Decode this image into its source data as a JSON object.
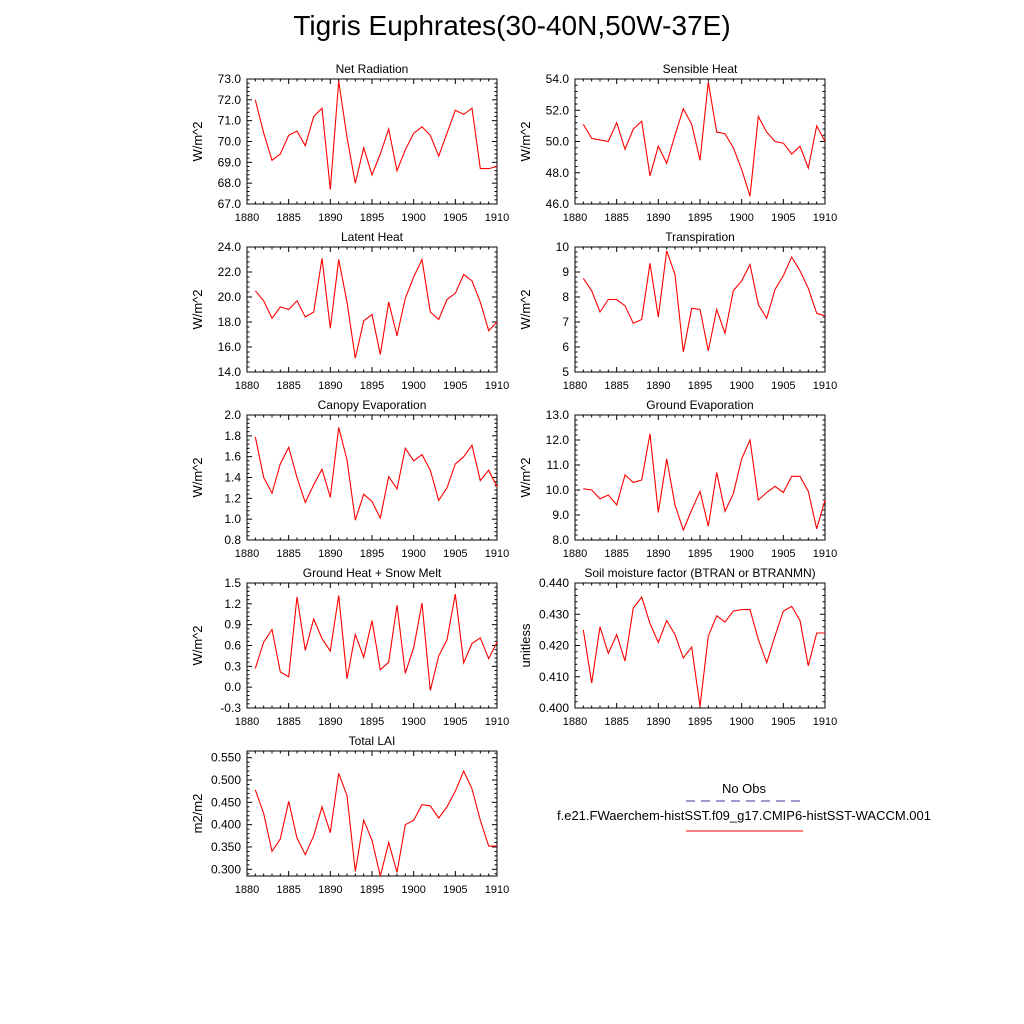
{
  "page_title": "Tigris Euphrates(30-40N,50W-37E)",
  "legend": {
    "obs_label": "No Obs",
    "obs_color": "#3a3aa0",
    "model_label": "f.e21.FWaerchem-histSST.f09_g17.CMIP6-histSST-WACCM.001",
    "model_color": "#ff0000"
  },
  "chart_data": [
    {
      "type": "line",
      "title": "Net Radiation",
      "xlabel": "",
      "ylabel": "W/m^2",
      "xlim": [
        1880,
        1910
      ],
      "ylim": [
        67.0,
        73.0
      ],
      "xticks": [
        "1880",
        "1885",
        "1890",
        "1895",
        "1900",
        "1905",
        "1910"
      ],
      "yticks": [
        "67.0",
        "68.0",
        "69.0",
        "70.0",
        "71.0",
        "72.0",
        "73.0"
      ],
      "x": [
        1881,
        1882,
        1883,
        1884,
        1885,
        1886,
        1887,
        1888,
        1889,
        1890,
        1891,
        1892,
        1893,
        1894,
        1895,
        1896,
        1897,
        1898,
        1899,
        1900,
        1901,
        1902,
        1903,
        1904,
        1905,
        1906,
        1907,
        1908,
        1909,
        1910
      ],
      "series": [
        {
          "values": [
            72.0,
            70.4,
            69.1,
            69.4,
            70.3,
            70.5,
            69.8,
            71.2,
            71.6,
            67.7,
            72.9,
            70.2,
            68.0,
            69.7,
            68.4,
            69.4,
            70.6,
            68.6,
            69.6,
            70.4,
            70.7,
            70.3,
            69.3,
            70.4,
            71.5,
            71.3,
            71.6,
            68.7,
            68.7,
            68.8
          ]
        }
      ]
    },
    {
      "type": "line",
      "title": "Sensible Heat",
      "xlabel": "",
      "ylabel": "W/m^2",
      "xlim": [
        1880,
        1910
      ],
      "ylim": [
        46.0,
        54.0
      ],
      "xticks": [
        "1880",
        "1885",
        "1890",
        "1895",
        "1900",
        "1905",
        "1910"
      ],
      "yticks": [
        "46.0",
        "48.0",
        "50.0",
        "52.0",
        "54.0"
      ],
      "x": [
        1881,
        1882,
        1883,
        1884,
        1885,
        1886,
        1887,
        1888,
        1889,
        1890,
        1891,
        1892,
        1893,
        1894,
        1895,
        1896,
        1897,
        1898,
        1899,
        1900,
        1901,
        1902,
        1903,
        1904,
        1905,
        1906,
        1907,
        1908,
        1909,
        1910
      ],
      "series": [
        {
          "values": [
            51.1,
            50.2,
            50.1,
            50.0,
            51.2,
            49.5,
            50.8,
            51.3,
            47.8,
            49.7,
            48.6,
            50.4,
            52.1,
            51.1,
            48.8,
            53.8,
            50.6,
            50.5,
            49.6,
            48.2,
            46.5,
            51.6,
            50.6,
            50.0,
            49.9,
            49.2,
            49.7,
            48.3,
            51.0,
            50.0
          ]
        }
      ]
    },
    {
      "type": "line",
      "title": "Latent Heat",
      "xlabel": "",
      "ylabel": "W/m^2",
      "xlim": [
        1880,
        1910
      ],
      "ylim": [
        14.0,
        24.0
      ],
      "xticks": [
        "1880",
        "1885",
        "1890",
        "1895",
        "1900",
        "1905",
        "1910"
      ],
      "yticks": [
        "14.0",
        "16.0",
        "18.0",
        "20.0",
        "22.0",
        "24.0"
      ],
      "x": [
        1881,
        1882,
        1883,
        1884,
        1885,
        1886,
        1887,
        1888,
        1889,
        1890,
        1891,
        1892,
        1893,
        1894,
        1895,
        1896,
        1897,
        1898,
        1899,
        1900,
        1901,
        1902,
        1903,
        1904,
        1905,
        1906,
        1907,
        1908,
        1909,
        1910
      ],
      "series": [
        {
          "values": [
            20.5,
            19.7,
            18.3,
            19.2,
            19.0,
            19.7,
            18.4,
            18.8,
            23.1,
            17.5,
            23.0,
            19.6,
            15.1,
            18.1,
            18.6,
            15.4,
            19.6,
            16.9,
            19.9,
            21.6,
            23.0,
            18.8,
            18.2,
            19.8,
            20.3,
            21.8,
            21.3,
            19.6,
            17.3,
            18.0
          ]
        }
      ]
    },
    {
      "type": "line",
      "title": "Transpiration",
      "xlabel": "",
      "ylabel": "W/m^2",
      "xlim": [
        1880,
        1910
      ],
      "ylim": [
        5,
        10
      ],
      "xticks": [
        "1880",
        "1885",
        "1890",
        "1895",
        "1900",
        "1905",
        "1910"
      ],
      "yticks": [
        "5",
        "6",
        "7",
        "8",
        "9",
        "10"
      ],
      "x": [
        1881,
        1882,
        1883,
        1884,
        1885,
        1886,
        1887,
        1888,
        1889,
        1890,
        1891,
        1892,
        1893,
        1894,
        1895,
        1896,
        1897,
        1898,
        1899,
        1900,
        1901,
        1902,
        1903,
        1904,
        1905,
        1906,
        1907,
        1908,
        1909,
        1910
      ],
      "series": [
        {
          "values": [
            8.75,
            8.25,
            7.4,
            7.9,
            7.9,
            7.65,
            6.95,
            7.1,
            9.35,
            7.2,
            9.85,
            8.9,
            5.8,
            7.55,
            7.5,
            5.85,
            7.5,
            6.55,
            8.25,
            8.65,
            9.3,
            7.7,
            7.15,
            8.3,
            8.85,
            9.6,
            9.05,
            8.35,
            7.35,
            7.25
          ]
        }
      ]
    },
    {
      "type": "line",
      "title": "Canopy Evaporation",
      "xlabel": "",
      "ylabel": "W/m^2",
      "xlim": [
        1880,
        1910
      ],
      "ylim": [
        0.8,
        2.0
      ],
      "xticks": [
        "1880",
        "1885",
        "1890",
        "1895",
        "1900",
        "1905",
        "1910"
      ],
      "yticks": [
        "0.8",
        "1.0",
        "1.2",
        "1.4",
        "1.6",
        "1.8",
        "2.0"
      ],
      "x": [
        1881,
        1882,
        1883,
        1884,
        1885,
        1886,
        1887,
        1888,
        1889,
        1890,
        1891,
        1892,
        1893,
        1894,
        1895,
        1896,
        1897,
        1898,
        1899,
        1900,
        1901,
        1902,
        1903,
        1904,
        1905,
        1906,
        1907,
        1908,
        1909,
        1910
      ],
      "series": [
        {
          "values": [
            1.79,
            1.4,
            1.25,
            1.53,
            1.69,
            1.4,
            1.16,
            1.33,
            1.48,
            1.21,
            1.88,
            1.57,
            0.99,
            1.24,
            1.17,
            1.01,
            1.41,
            1.29,
            1.68,
            1.56,
            1.62,
            1.47,
            1.18,
            1.3,
            1.53,
            1.6,
            1.71,
            1.37,
            1.47,
            1.31
          ]
        }
      ]
    },
    {
      "type": "line",
      "title": "Ground Evaporation",
      "xlabel": "",
      "ylabel": "W/m^2",
      "xlim": [
        1880,
        1910
      ],
      "ylim": [
        8.0,
        13.0
      ],
      "xticks": [
        "1880",
        "1885",
        "1890",
        "1895",
        "1900",
        "1905",
        "1910"
      ],
      "yticks": [
        "8.0",
        "9.0",
        "10.0",
        "11.0",
        "12.0",
        "13.0"
      ],
      "x": [
        1881,
        1882,
        1883,
        1884,
        1885,
        1886,
        1887,
        1888,
        1889,
        1890,
        1891,
        1892,
        1893,
        1894,
        1895,
        1896,
        1897,
        1898,
        1899,
        1900,
        1901,
        1902,
        1903,
        1904,
        1905,
        1906,
        1907,
        1908,
        1909,
        1910
      ],
      "series": [
        {
          "values": [
            10.05,
            10.0,
            9.65,
            9.8,
            9.4,
            10.6,
            10.3,
            10.4,
            12.25,
            9.1,
            11.25,
            9.4,
            8.4,
            9.2,
            9.95,
            8.55,
            10.7,
            9.15,
            9.85,
            11.25,
            12.0,
            9.6,
            9.9,
            10.15,
            9.9,
            10.55,
            10.55,
            9.95,
            8.45,
            9.6
          ]
        }
      ]
    },
    {
      "type": "line",
      "title": "Ground Heat + Snow Melt",
      "xlabel": "",
      "ylabel": "W/m^2",
      "xlim": [
        1880,
        1910
      ],
      "ylim": [
        -0.3,
        1.5
      ],
      "xticks": [
        "1880",
        "1885",
        "1890",
        "1895",
        "1900",
        "1905",
        "1910"
      ],
      "yticks": [
        "-0.3",
        "0.0",
        "0.3",
        "0.6",
        "0.9",
        "1.2",
        "1.5"
      ],
      "x": [
        1881,
        1882,
        1883,
        1884,
        1885,
        1886,
        1887,
        1888,
        1889,
        1890,
        1891,
        1892,
        1893,
        1894,
        1895,
        1896,
        1897,
        1898,
        1899,
        1900,
        1901,
        1902,
        1903,
        1904,
        1905,
        1906,
        1907,
        1908,
        1909,
        1910
      ],
      "series": [
        {
          "values": [
            0.27,
            0.65,
            0.83,
            0.22,
            0.15,
            1.3,
            0.53,
            0.98,
            0.7,
            0.52,
            1.32,
            0.12,
            0.76,
            0.43,
            0.96,
            0.25,
            0.36,
            1.18,
            0.2,
            0.57,
            1.21,
            -0.05,
            0.45,
            0.68,
            1.34,
            0.35,
            0.63,
            0.71,
            0.41,
            0.65
          ]
        }
      ]
    },
    {
      "type": "line",
      "title": "Soil moisture factor (BTRAN or BTRANMN)",
      "xlabel": "",
      "ylabel": "unitless",
      "xlim": [
        1880,
        1910
      ],
      "ylim": [
        0.4,
        0.44
      ],
      "xticks": [
        "1880",
        "1885",
        "1890",
        "1895",
        "1900",
        "1905",
        "1910"
      ],
      "yticks": [
        "0.400",
        "0.410",
        "0.420",
        "0.430",
        "0.440"
      ],
      "x": [
        1881,
        1882,
        1883,
        1884,
        1885,
        1886,
        1887,
        1888,
        1889,
        1890,
        1891,
        1892,
        1893,
        1894,
        1895,
        1896,
        1897,
        1898,
        1899,
        1900,
        1901,
        1902,
        1903,
        1904,
        1905,
        1906,
        1907,
        1908,
        1909,
        1910
      ],
      "series": [
        {
          "values": [
            0.425,
            0.408,
            0.426,
            0.4175,
            0.4235,
            0.415,
            0.432,
            0.4355,
            0.427,
            0.421,
            0.428,
            0.4235,
            0.416,
            0.4195,
            0.4005,
            0.423,
            0.4295,
            0.4275,
            0.431,
            0.4315,
            0.4315,
            0.422,
            0.4145,
            0.423,
            0.431,
            0.4325,
            0.428,
            0.4135,
            0.424,
            0.424
          ]
        }
      ]
    },
    {
      "type": "line",
      "title": "Total LAI",
      "xlabel": "",
      "ylabel": "m2/m2",
      "xlim": [
        1880,
        1910
      ],
      "ylim": [
        0.285,
        0.565
      ],
      "xticks": [
        "1880",
        "1885",
        "1890",
        "1895",
        "1900",
        "1905",
        "1910"
      ],
      "yticks": [
        "0.300",
        "0.350",
        "0.400",
        "0.450",
        "0.500",
        "0.550"
      ],
      "x": [
        1881,
        1882,
        1883,
        1884,
        1885,
        1886,
        1887,
        1888,
        1889,
        1890,
        1891,
        1892,
        1893,
        1894,
        1895,
        1896,
        1897,
        1898,
        1899,
        1900,
        1901,
        1902,
        1903,
        1904,
        1905,
        1906,
        1907,
        1908,
        1909,
        1910
      ],
      "series": [
        {
          "values": [
            0.478,
            0.425,
            0.34,
            0.368,
            0.452,
            0.37,
            0.333,
            0.375,
            0.44,
            0.382,
            0.515,
            0.465,
            0.295,
            0.41,
            0.365,
            0.285,
            0.36,
            0.293,
            0.4,
            0.41,
            0.445,
            0.442,
            0.415,
            0.44,
            0.475,
            0.52,
            0.48,
            0.41,
            0.352,
            0.352
          ]
        }
      ]
    }
  ]
}
